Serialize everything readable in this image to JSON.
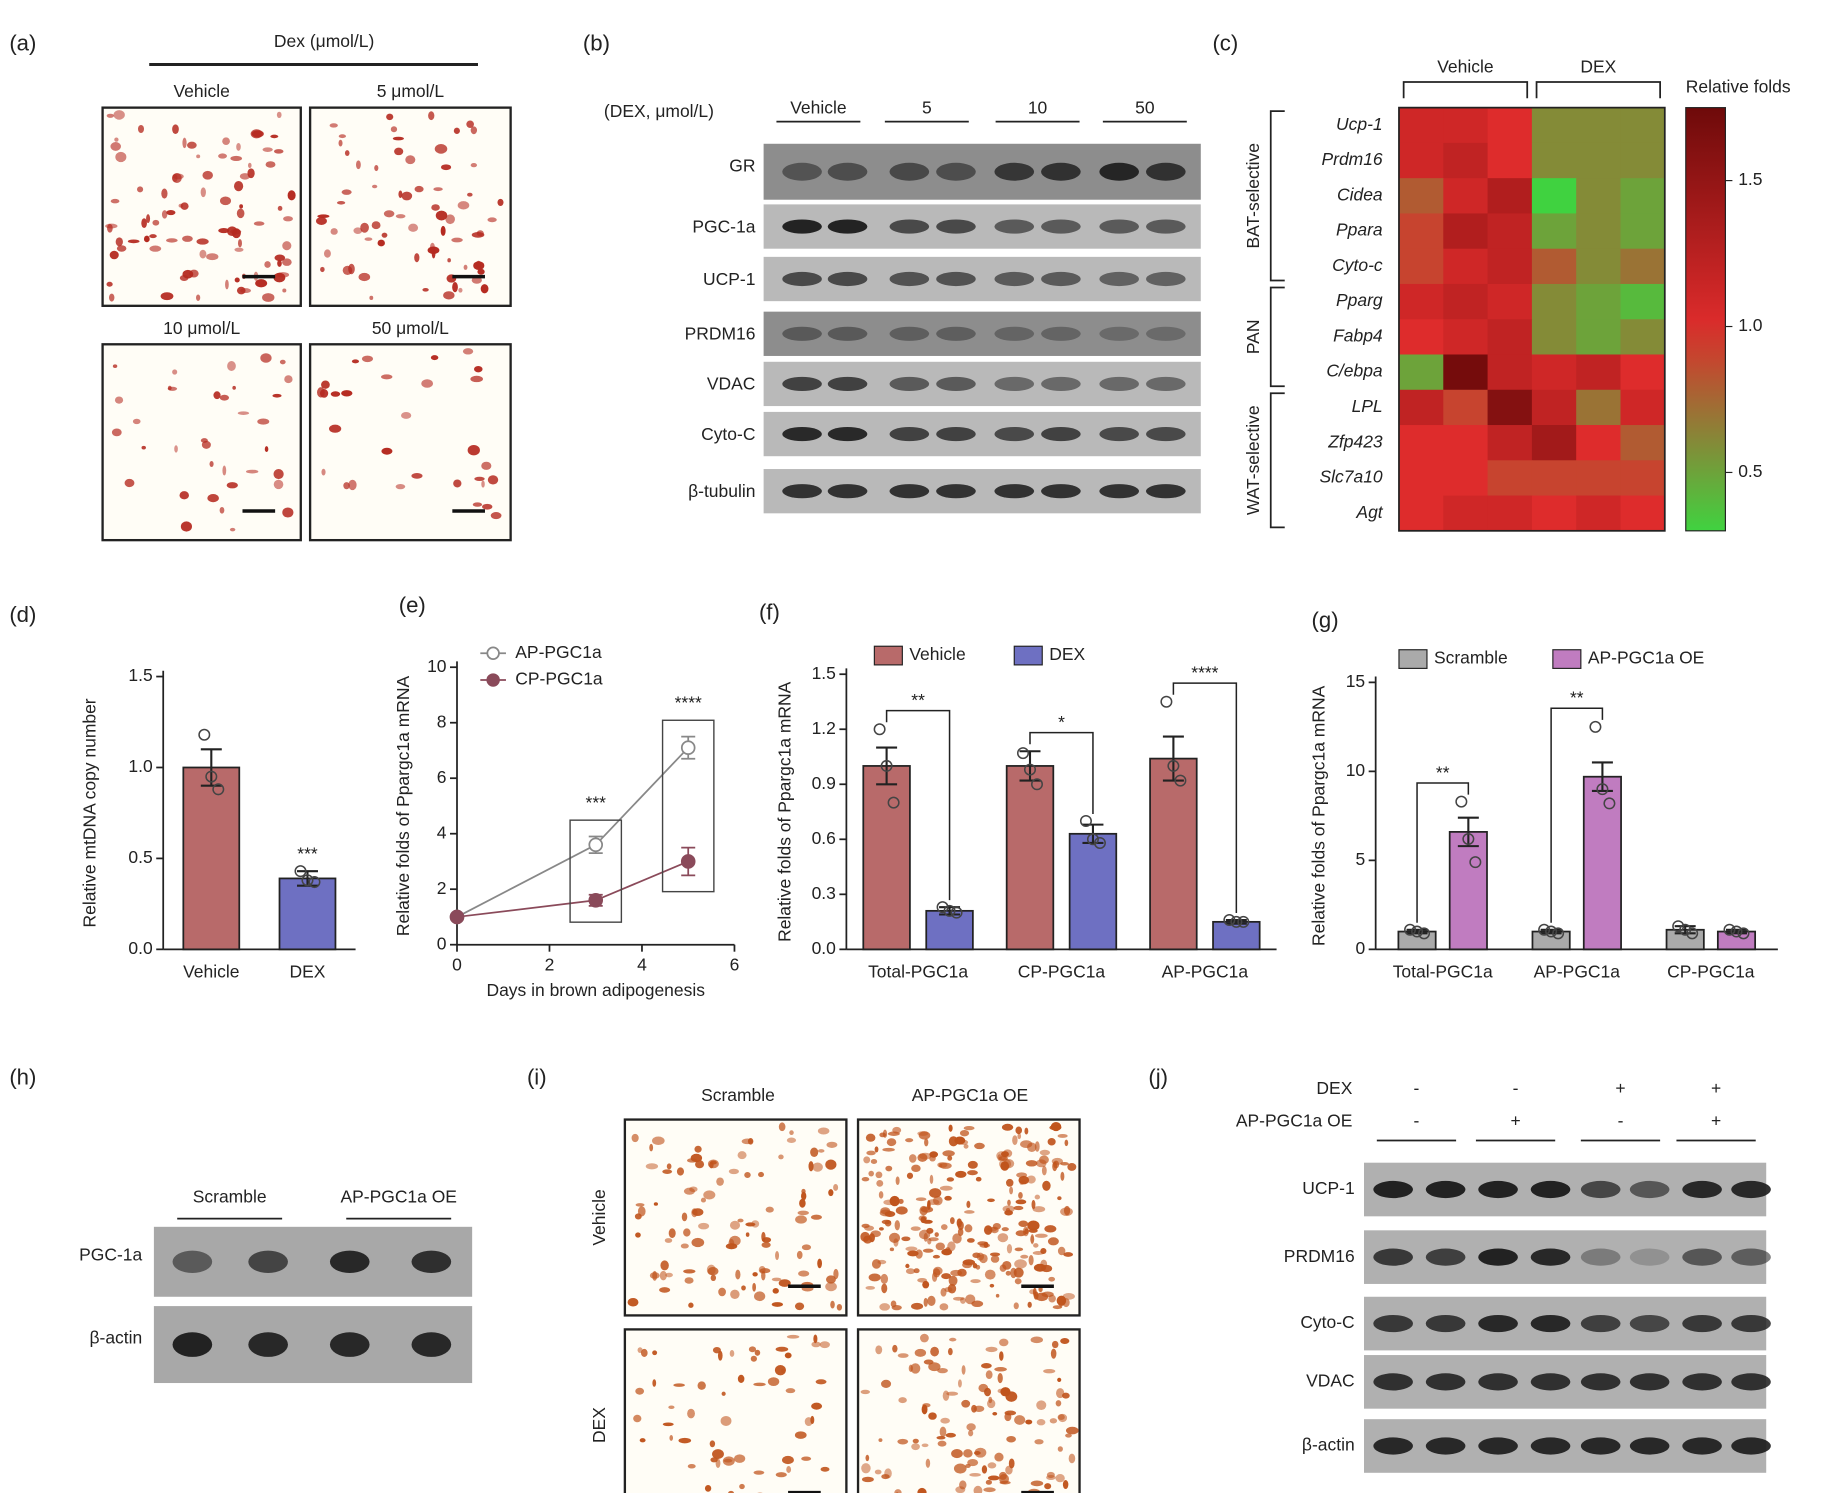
{
  "panels": {
    "a": {
      "label": "(a)",
      "header": "Dex (μmol/L)",
      "images": [
        "Vehicle",
        "5 μmol/L",
        "10 μmol/L",
        "50 μmol/L"
      ]
    },
    "b": {
      "label": "(b)",
      "header": "(DEX, μmol/L)",
      "groups": [
        "Vehicle",
        "5",
        "10",
        "50"
      ],
      "rows": [
        "GR",
        "PGC-1a",
        "UCP-1",
        "PRDM16",
        "VDAC",
        "Cyto-C",
        "β-tubulin"
      ]
    },
    "h": {
      "label": "(h)",
      "groups": [
        "Scramble",
        "AP-PGC1a OE"
      ],
      "rows": [
        "PGC-1a",
        "β-actin"
      ]
    },
    "i": {
      "label": "(i)",
      "columns": [
        "Scramble",
        "AP-PGC1a OE"
      ],
      "rows": [
        "Vehicle",
        "DEX"
      ]
    },
    "j": {
      "label": "(j)",
      "conditions": [
        {
          "name": "DEX",
          "signs": [
            "-",
            "-",
            "+",
            "+"
          ]
        },
        {
          "name": "AP-PGC1a  OE",
          "signs": [
            "-",
            "+",
            "-",
            "+"
          ]
        }
      ],
      "rows": [
        "UCP-1",
        "PRDM16",
        "Cyto-C",
        "VDAC",
        "β-actin"
      ]
    }
  },
  "chart_data": [
    {
      "type": "heatmap",
      "label": "(c)",
      "column_groups": [
        "Vehicle",
        "DEX"
      ],
      "rows": [
        "Ucp-1",
        "Prdm16",
        "Cidea",
        "Ppara",
        "Cyto-c",
        "Pparg",
        "Fabp4",
        "C/ebpa",
        "LPL",
        "Zfp423",
        "Slc7a10",
        "Agt"
      ],
      "row_groups": [
        "BAT-selective",
        "PAN",
        "WAT-selective"
      ],
      "values": [
        [
          1.1,
          1.1,
          1.0,
          0.6,
          0.6,
          0.6
        ],
        [
          1.1,
          1.2,
          1.0,
          0.6,
          0.6,
          0.6
        ],
        [
          0.8,
          1.1,
          1.3,
          0.3,
          0.6,
          0.5
        ],
        [
          0.9,
          1.3,
          1.2,
          0.5,
          0.6,
          0.5
        ],
        [
          0.9,
          1.1,
          1.2,
          0.8,
          0.6,
          0.7
        ],
        [
          1.1,
          1.2,
          1.1,
          0.6,
          0.5,
          0.4
        ],
        [
          1.0,
          1.1,
          1.2,
          0.6,
          0.5,
          0.6
        ],
        [
          0.5,
          1.7,
          1.2,
          1.1,
          1.2,
          1.0
        ],
        [
          1.2,
          0.9,
          1.6,
          1.2,
          0.7,
          1.1
        ],
        [
          1.0,
          1.0,
          1.2,
          1.4,
          1.0,
          0.8
        ],
        [
          1.0,
          1.0,
          0.9,
          0.9,
          0.9,
          0.9
        ],
        [
          1.0,
          1.1,
          1.1,
          1.0,
          1.1,
          1.0
        ]
      ],
      "colorbar_title": "Relative folds",
      "clim": [
        0.3,
        1.75
      ],
      "cticks": [
        0.5,
        {
          "value": 1,
          "label": "1.0"
        },
        1.5
      ]
    },
    {
      "type": "bar",
      "label": "(d)",
      "ylabel": "Relative mtDNA copy number",
      "categories": [
        "Vehicle",
        "DEX"
      ],
      "values": [
        1.0,
        0.39
      ],
      "errors": [
        0.1,
        0.04
      ],
      "points": [
        [
          1.18,
          0.95,
          0.88
        ],
        [
          0.43,
          0.38,
          0.37
        ]
      ],
      "colors": [
        "#b86a6a",
        "#6e70c2"
      ],
      "significance": [
        null,
        "***"
      ],
      "ylim": [
        0,
        1.5
      ],
      "yticks": [
        {
          "value": 0,
          "label": "0.0"
        },
        0.5,
        {
          "value": 1,
          "label": "1.0"
        },
        1.5
      ]
    },
    {
      "type": "line",
      "label": "(e)",
      "xlabel": "Days in brown adipogenesis",
      "ylabel": "Relative folds of Ppargc1a mRNA",
      "x": [
        0,
        3,
        5
      ],
      "series": [
        {
          "name": "AP-PGC1a",
          "color": "#888888",
          "marker": "open",
          "values": [
            1,
            3.6,
            7.1
          ],
          "errors": [
            0,
            0.3,
            0.4
          ]
        },
        {
          "name": "CP-PGC1a",
          "color": "#8a4a5a",
          "marker": "filled",
          "values": [
            1,
            1.6,
            3.0
          ],
          "errors": [
            0,
            0.2,
            0.5
          ]
        }
      ],
      "significance": [
        null,
        "***",
        "****"
      ],
      "xlim": [
        0,
        6
      ],
      "xticks": [
        0,
        2,
        4,
        6
      ],
      "ylim": [
        0,
        10
      ],
      "yticks": [
        0,
        2,
        4,
        6,
        8,
        10
      ]
    },
    {
      "type": "bar",
      "label": "(f)",
      "ylabel": "Relative folds of Ppargc1a mRNA",
      "categories": [
        "Total-PGC1a",
        "CP-PGC1a",
        "AP-PGC1a"
      ],
      "series": [
        {
          "name": "Vehicle",
          "color": "#b86a6a",
          "values": [
            1.0,
            1.0,
            1.04
          ],
          "errors": [
            0.1,
            0.08,
            0.12
          ],
          "points": [
            [
              1.2,
              1.0,
              0.8
            ],
            [
              1.07,
              0.98,
              0.9
            ],
            [
              1.35,
              1.0,
              0.92
            ]
          ]
        },
        {
          "name": "DEX",
          "color": "#6e70c2",
          "values": [
            0.21,
            0.63,
            0.15
          ],
          "errors": [
            0.02,
            0.05,
            0.01
          ],
          "points": [
            [
              0.23,
              0.21,
              0.2
            ],
            [
              0.7,
              0.6,
              0.58
            ],
            [
              0.16,
              0.15,
              0.15
            ]
          ]
        }
      ],
      "significance": [
        "**",
        "*",
        "****"
      ],
      "ylim": [
        0,
        1.5
      ],
      "yticks": [
        {
          "value": 0,
          "label": "0.0"
        },
        0.3,
        0.6,
        0.9,
        1.2,
        1.5
      ]
    },
    {
      "type": "bar",
      "label": "(g)",
      "ylabel": "Relative folds of Ppargc1a mRNA",
      "categories": [
        "Total-PGC1a",
        "AP-PGC1a",
        "CP-PGC1a"
      ],
      "series": [
        {
          "name": "Scramble",
          "color": "#aaaaaa",
          "values": [
            1.0,
            1.0,
            1.1
          ],
          "errors": [
            0.1,
            0.1,
            0.2
          ],
          "points": [
            [
              1.1,
              1.0,
              0.9
            ],
            [
              1.1,
              1.0,
              0.9
            ],
            [
              1.3,
              1.1,
              0.9
            ]
          ]
        },
        {
          "name": "AP-PGC1a OE",
          "color": "#c07cc0",
          "values": [
            6.6,
            9.7,
            1.0
          ],
          "errors": [
            0.8,
            0.8,
            0.1
          ],
          "points": [
            [
              8.3,
              6.2,
              4.9
            ],
            [
              12.5,
              9.0,
              8.2
            ],
            [
              1.1,
              1.0,
              0.9
            ]
          ]
        }
      ],
      "significance": [
        "**",
        "**",
        null
      ],
      "ylim": [
        0,
        15
      ],
      "yticks": [
        0,
        5,
        10,
        15
      ]
    }
  ]
}
